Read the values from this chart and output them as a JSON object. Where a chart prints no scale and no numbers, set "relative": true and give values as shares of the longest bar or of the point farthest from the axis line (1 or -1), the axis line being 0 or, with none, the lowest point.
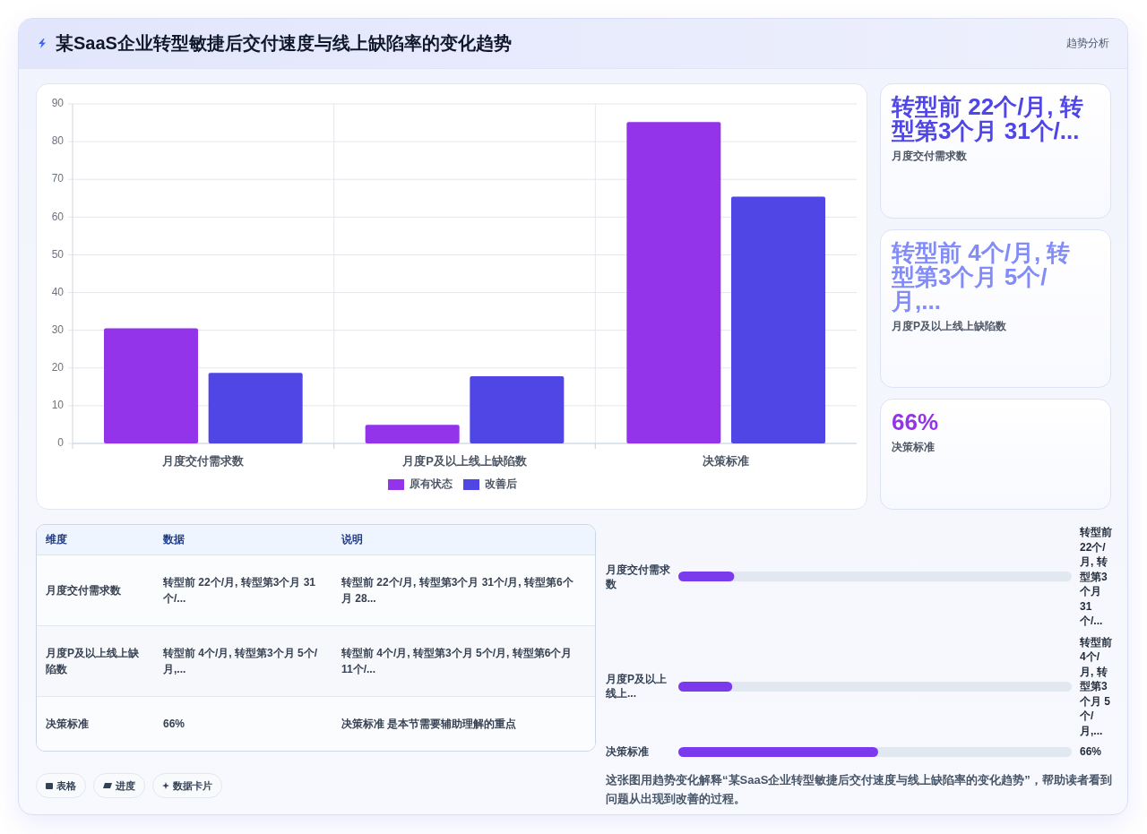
{
  "chart_data": [
    {
      "type": "bar",
      "title": "某SaaS企业转型敏捷后交付速度与线上缺陷率的变化趋势",
      "annotations": [
        "趋势分析"
      ],
      "categories": [
        "月度交付需求数",
        "月度P及以上线上缺陷数",
        "决策标准"
      ],
      "series": [
        {
          "name": "原有状态",
          "color": "#9333ea",
          "values": [
            30.5,
            4.9,
            85.2
          ]
        },
        {
          "name": "改善后",
          "color": "#4f46e5",
          "values": [
            18.7,
            17.8,
            65.4
          ]
        }
      ],
      "ylim": [
        0,
        90
      ],
      "yticks": [
        0,
        10,
        20,
        30,
        40,
        50,
        60,
        70,
        80,
        90
      ],
      "grid": true,
      "legend": "bottom"
    },
    {
      "type": "other",
      "categories": [
        "月度交付需求数",
        "月度P及以上线上缺陷数",
        "决策标准"
      ],
      "value_labels": [
        "转型前 22个/月, 转型第3个月 31个/...",
        "转型前 4个/月, 转型第3个月 5个/月,...",
        "66%"
      ]
    },
    {
      "type": "other",
      "categories": [
        "维度",
        "数据",
        "说明"
      ],
      "cell_labels": [
        [
          "月度交付需求数",
          "转型前 22个/月, 转型第3个月 31个/...",
          "转型前 22个/月, 转型第3个月 31个/月, 转型第6个月 28..."
        ],
        [
          "月度P及以上线上缺陷数",
          "转型前 4个/月, 转型第3个月 5个/月,...",
          "转型前 4个/月, 转型第3个月 5个/月, 转型第6个月 11个/..."
        ],
        [
          "决策标准",
          "66%",
          "决策标准 是本节需要辅助理解的重点"
        ]
      ],
      "annotations": [
        "表格",
        "进度",
        "数据卡片"
      ]
    },
    {
      "type": "bar",
      "orientation": "horizontal",
      "relative": true,
      "categories": [
        "月度交付需求数",
        "月度P及以上线上...",
        "决策标准"
      ],
      "y2_categories": [
        "转型前 22个/月, 转型第3个月 31个/...",
        "转型前 4个/月, 转型第3个月 5个/月,...",
        "66%"
      ],
      "values": [
        0.28,
        0.27,
        1
      ],
      "tick_labels": "y",
      "color": "#7c3aed",
      "annotations": [
        "这张图用趋势变化解释“某SaaS企业转型敏捷后交付速度与线上缺陷率的变化趋势”，帮助读者看到问题从出现到改善的过程。"
      ]
    }
  ]
}
